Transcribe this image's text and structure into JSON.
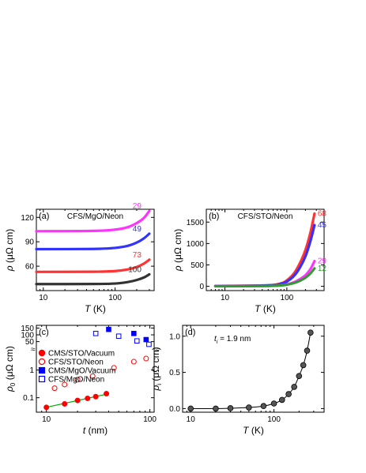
{
  "chart_data": [
    {
      "type": "line",
      "panel": "(a)",
      "title": "CFS/MgO/Neon",
      "xlabel_sym": "T",
      "xlabel_unit": "(K)",
      "ylabel_sym": "ρ",
      "ylabel_unit": "(μΩ cm)",
      "xscale": "log",
      "xlim": [
        8,
        350
      ],
      "ylim": [
        30,
        130
      ],
      "xticks": [
        10,
        100
      ],
      "xtick_labels": [
        "10",
        "100"
      ],
      "yticks": [
        60,
        90,
        120
      ],
      "ytick_labels": [
        "60",
        "90",
        "120"
      ],
      "grid": false,
      "series": [
        {
          "name": "29",
          "color": "#ff33ff",
          "x": [
            8,
            50,
            100,
            150,
            200,
            250,
            300
          ],
          "y": [
            103,
            103.4,
            105,
            108,
            113,
            119,
            128
          ]
        },
        {
          "name": "49",
          "color": "#3333ff",
          "x": [
            8,
            50,
            100,
            150,
            200,
            250,
            300
          ],
          "y": [
            81,
            81.2,
            82.5,
            85,
            89,
            94,
            100
          ]
        },
        {
          "name": "73",
          "color": "#ff3333",
          "x": [
            8,
            50,
            100,
            150,
            200,
            250,
            300
          ],
          "y": [
            53,
            53.2,
            54,
            56,
            59,
            63,
            68
          ]
        },
        {
          "name": "100",
          "color": "#333333",
          "x": [
            8,
            50,
            100,
            150,
            200,
            250,
            300
          ],
          "y": [
            38,
            38.1,
            38.7,
            40.5,
            43,
            46,
            50
          ]
        }
      ]
    },
    {
      "type": "line",
      "panel": "(b)",
      "title": "CFS/STO/Neon",
      "xlabel_sym": "T",
      "xlabel_unit": "(K)",
      "ylabel_sym": "ρ",
      "ylabel_unit": "(μΩ cm)",
      "xscale": "log",
      "xlim": [
        5,
        400
      ],
      "ylim": [
        -100,
        1800
      ],
      "xticks": [
        10,
        100
      ],
      "xtick_labels": [
        "10",
        "100"
      ],
      "yticks": [
        0,
        500,
        1000,
        1500
      ],
      "ytick_labels": [
        "0",
        "500",
        "1000",
        "1500"
      ],
      "grid": false,
      "series": [
        {
          "name": "68",
          "color": "#ff3333",
          "x": [
            7,
            50,
            80,
            100,
            130,
            160,
            200,
            240,
            280
          ],
          "y": [
            8,
            25,
            70,
            140,
            300,
            520,
            850,
            1250,
            1700
          ]
        },
        {
          "name": "45",
          "color": "#3333ff",
          "x": [
            7,
            50,
            80,
            100,
            130,
            160,
            200,
            240,
            280
          ],
          "y": [
            6,
            20,
            55,
            110,
            240,
            420,
            700,
            1050,
            1430
          ]
        },
        {
          "name": "29",
          "color": "#ff33ff",
          "x": [
            7,
            50,
            80,
            100,
            130,
            160,
            200,
            240,
            280
          ],
          "y": [
            3,
            10,
            25,
            45,
            95,
            160,
            260,
            400,
            590
          ]
        },
        {
          "name": "12",
          "color": "#339933",
          "x": [
            7,
            50,
            80,
            100,
            130,
            160,
            200,
            240,
            280
          ],
          "y": [
            2,
            8,
            20,
            38,
            75,
            125,
            200,
            300,
            420
          ]
        }
      ]
    },
    {
      "type": "scatter",
      "panel": "(c)",
      "xlabel_sym": "t",
      "xlabel_unit": "(nm)",
      "ylabel_sym": "ρ",
      "ylabel_sub": "0",
      "ylabel_unit": "(μΩ cm)",
      "xscale": "log",
      "yscale": "log",
      "xlim": [
        8,
        110
      ],
      "ylim": [
        0.03,
        250
      ],
      "xticks": [
        10,
        100
      ],
      "xtick_labels": [
        "10",
        "100"
      ],
      "yticks": [
        0.1,
        1,
        50,
        100,
        150
      ],
      "ytick_labels": [
        "0.1",
        "1",
        "50",
        "100",
        "150"
      ],
      "axis_break": true,
      "legend": "left",
      "grid": false,
      "series": [
        {
          "name": "CMS/STO/Vacuum",
          "color": "#ff0000",
          "marker": "circle",
          "filled": true,
          "x": [
            10,
            15,
            20,
            25,
            30,
            38
          ],
          "y": [
            0.045,
            0.06,
            0.08,
            0.095,
            0.11,
            0.14
          ]
        },
        {
          "name": "CFS/STO/Neon",
          "color": "#ff0000",
          "marker": "circle",
          "filled": false,
          "x": [
            12,
            15,
            20,
            28,
            45,
            70,
            92
          ],
          "y": [
            0.22,
            0.3,
            0.45,
            0.6,
            1.2,
            2.0,
            2.6
          ]
        },
        {
          "name": "CMS/MgO/Vacuum",
          "color": "#0000ff",
          "marker": "square",
          "filled": true,
          "x": [
            40,
            70,
            92
          ],
          "y": [
            140,
            110,
            65
          ]
        },
        {
          "name": "CFS/MgO/Neon",
          "color": "#0000ff",
          "marker": "square",
          "filled": false,
          "x": [
            30,
            50,
            75,
            98
          ],
          "y": [
            110,
            90,
            55,
            30
          ]
        }
      ],
      "fit_line": {
        "color": "#00aa00",
        "x": [
          10,
          40
        ],
        "y": [
          0.045,
          0.14
        ]
      }
    },
    {
      "type": "line",
      "panel": "(d)",
      "annotation_sym": "t",
      "annotation_sub": "i",
      "annotation_value": "= 1.9 nm",
      "xlabel_sym": "T",
      "xlabel_unit": "(K)",
      "ylabel_sym": "ρ",
      "ylabel_sub": "i",
      "ylabel_unit": "(μΩ cm)",
      "xscale": "log",
      "xlim": [
        8,
        400
      ],
      "ylim": [
        -0.05,
        1.15
      ],
      "xticks": [
        10,
        100
      ],
      "xtick_labels": [
        "10",
        "100"
      ],
      "yticks": [
        0.0,
        0.5,
        1.0
      ],
      "ytick_labels": [
        "0.0",
        "0.5",
        "1.0"
      ],
      "grid": false,
      "series": [
        {
          "color": "#333333",
          "marker": "circle",
          "x": [
            10,
            20,
            30,
            50,
            75,
            100,
            125,
            150,
            175,
            200,
            225,
            250,
            275
          ],
          "y": [
            0.0,
            0.0,
            0.005,
            0.015,
            0.035,
            0.07,
            0.12,
            0.2,
            0.3,
            0.45,
            0.6,
            0.8,
            1.05
          ]
        }
      ]
    }
  ]
}
